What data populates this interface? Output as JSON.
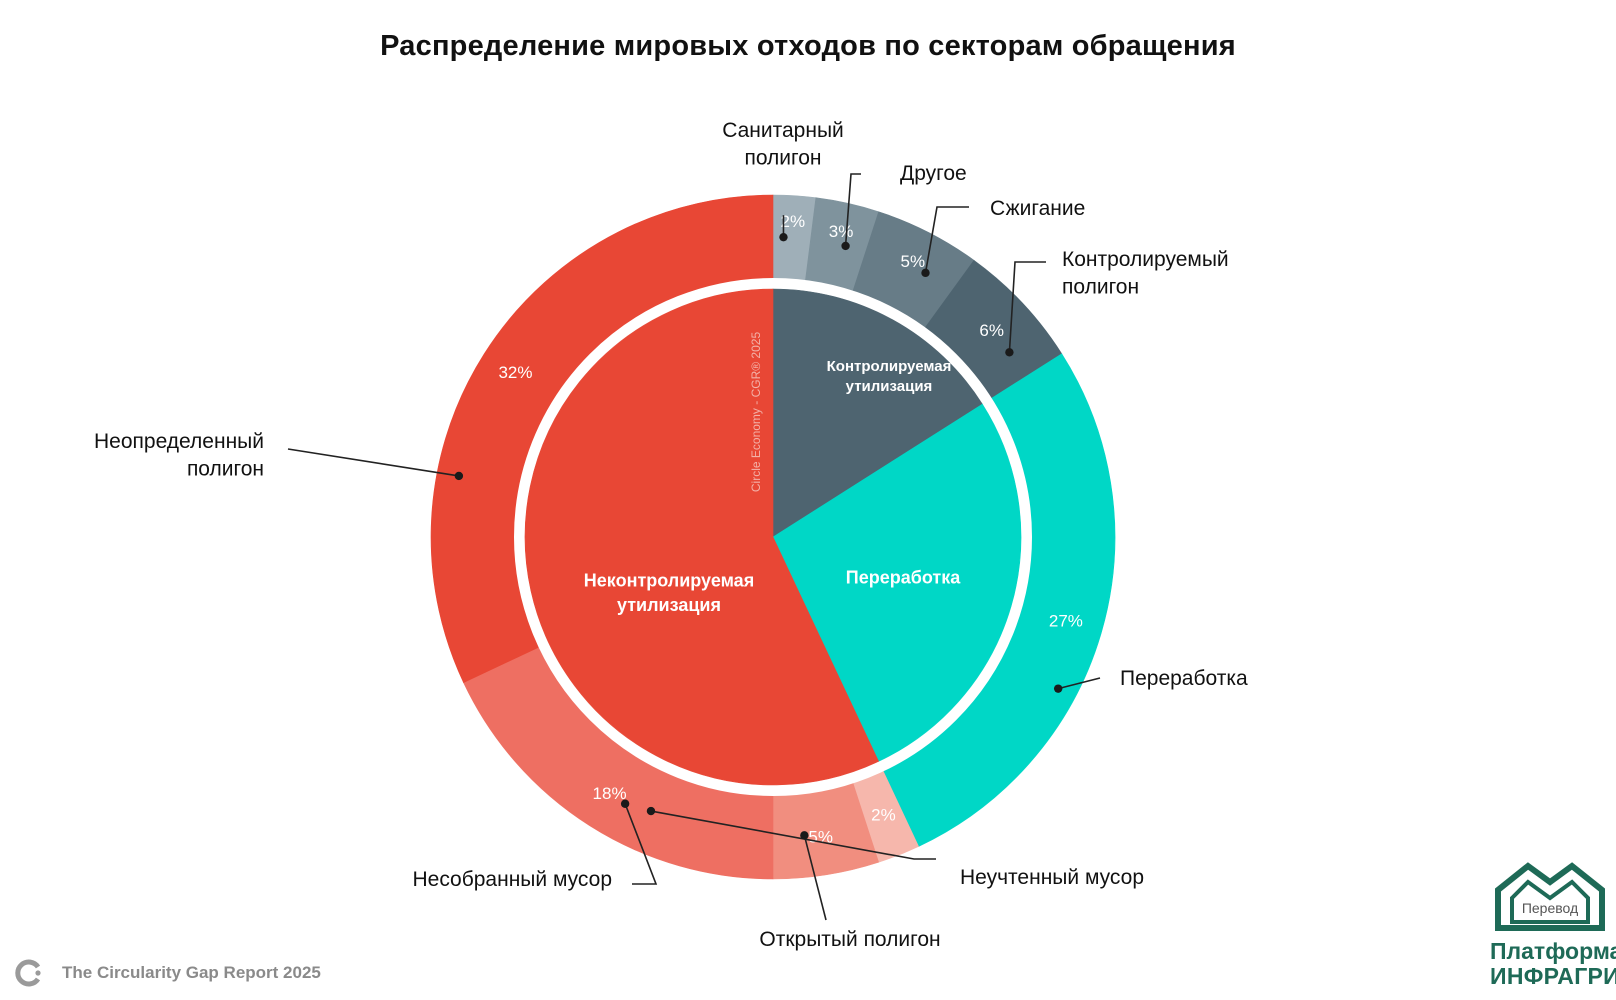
{
  "title": "Распределение мировых отходов по секторам обращения",
  "chart_data": {
    "type": "pie",
    "variant": "nested-donut",
    "title": "Распределение мировых отходов по секторам обращения",
    "source_watermark": "Circle Economy - CGR® 2025",
    "inner": [
      {
        "label": "Контролируемая утилизация",
        "value": 16,
        "color": "#4e6470"
      },
      {
        "label": "Переработка",
        "value": 27,
        "color": "#00d7c6"
      },
      {
        "label": "Неконтролируемая утилизация",
        "value": 57,
        "color": "#e84735"
      }
    ],
    "outer": [
      {
        "label": "Санитарный полигон",
        "value": 2,
        "display": "2%",
        "color": "#9fafb8"
      },
      {
        "label": "Другое",
        "value": 3,
        "display": "3%",
        "color": "#7f939d"
      },
      {
        "label": "Сжигание",
        "value": 5,
        "display": "5%",
        "color": "#677c87"
      },
      {
        "label": "Контролируемый полигон",
        "value": 6,
        "display": "6%",
        "color": "#4e6470"
      },
      {
        "label": "Переработка",
        "value": 27,
        "display": "27%",
        "color": "#00d7c6"
      },
      {
        "label": "Неучтенный мусор",
        "value": 2,
        "display": "2%",
        "color": "#f6b7ac"
      },
      {
        "label": "Открытый полигон",
        "value": 5,
        "display": "5%",
        "color": "#f18e7f"
      },
      {
        "label": "Несобранный мусор",
        "value": 18,
        "display": "18%",
        "color": "#ee6f62"
      },
      {
        "label": "Неопределенный полигон",
        "value": 32,
        "display": "32%",
        "color": "#e84735"
      }
    ]
  },
  "footer": {
    "report": "The Circularity Gap Report 2025"
  },
  "brand": {
    "badge": "Перевод",
    "line1": "Платформа",
    "line2": "ИНФРАГРИН"
  }
}
